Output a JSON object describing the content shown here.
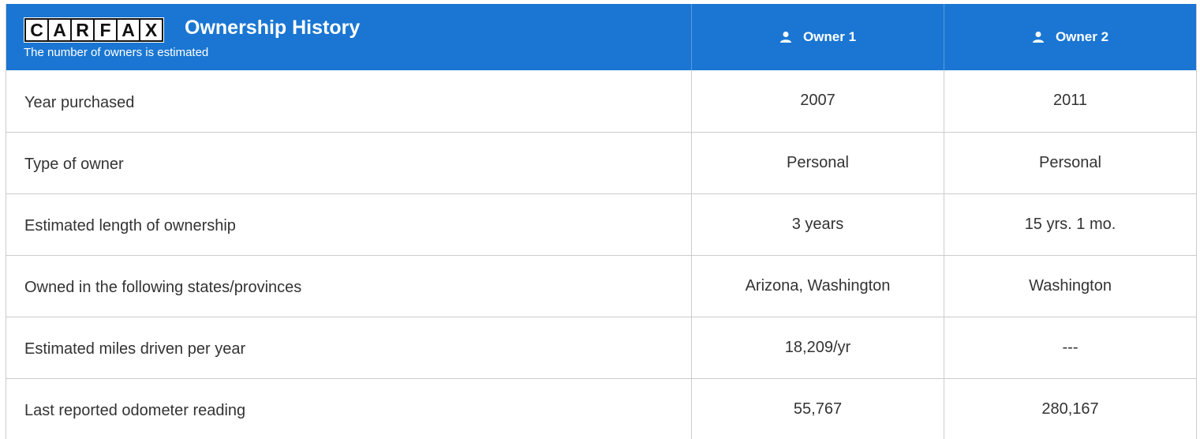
{
  "header": {
    "logo": [
      "C",
      "A",
      "R",
      "F",
      "A",
      "X"
    ],
    "title": "Ownership History",
    "subtitle": "The number of owners is estimated"
  },
  "columns": [
    "Owner 1",
    "Owner 2"
  ],
  "rows": [
    [
      "Year purchased",
      "2007",
      "2011"
    ],
    [
      "Type of owner",
      "Personal",
      "Personal"
    ],
    [
      "Estimated length of ownership",
      "3 years",
      "15 yrs. 1 mo."
    ],
    [
      "Owned in the following states/provinces",
      "Arizona, Washington",
      "Washington"
    ],
    [
      "Estimated miles driven per year",
      "18,209/yr",
      "---"
    ],
    [
      "Last reported odometer reading",
      "55,767",
      "280,167"
    ]
  ]
}
